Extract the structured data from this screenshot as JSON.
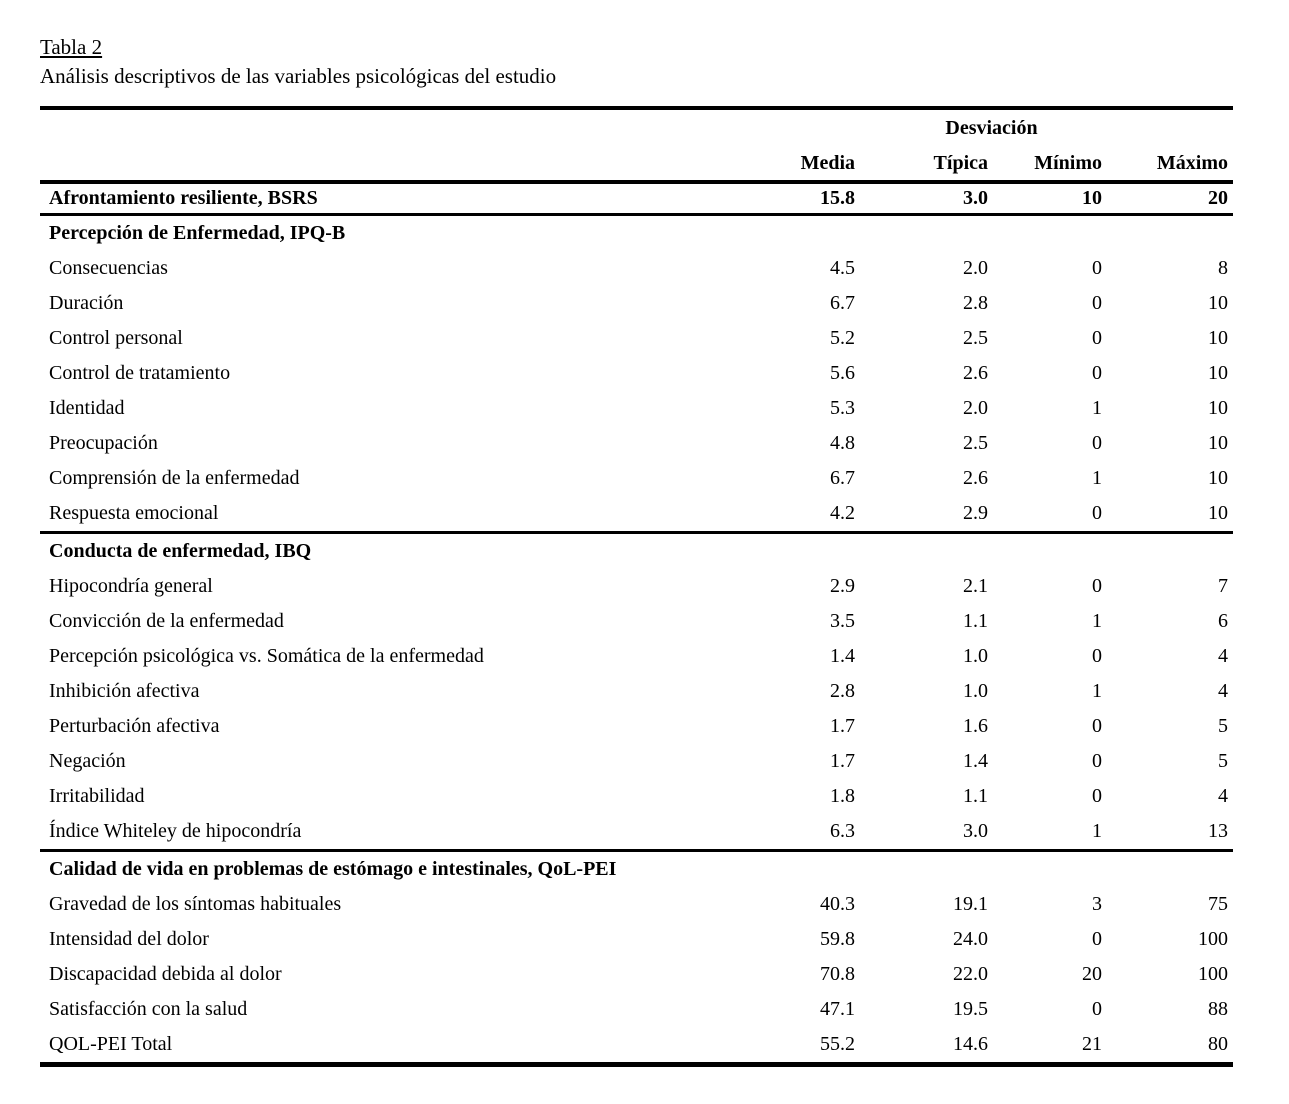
{
  "colors": {
    "background": "#ffffff",
    "text": "#000000",
    "rule": "#000000"
  },
  "document": {
    "table_label": "Tabla 2",
    "table_caption": "Análisis descriptivos de las variables psicológicas del estudio"
  },
  "table": {
    "columns": {
      "group_header": "Desviación",
      "headers": [
        "Media",
        "Típica",
        "Mínimo",
        "Máximo"
      ]
    },
    "rows": [
      {
        "label": "Afrontamiento resiliente, BSRS",
        "style": "bold",
        "rule_below": true,
        "values": [
          "15.8",
          "3.0",
          "10",
          "20"
        ]
      },
      {
        "label": "Percepción de Enfermedad, IPQ-B",
        "style": "section",
        "values": [
          "",
          "",
          "",
          ""
        ]
      },
      {
        "label": "Consecuencias",
        "style": "normal",
        "values": [
          "4.5",
          "2.0",
          "0",
          "8"
        ]
      },
      {
        "label": "Duración",
        "style": "normal",
        "values": [
          "6.7",
          "2.8",
          "0",
          "10"
        ]
      },
      {
        "label": "Control personal",
        "style": "normal",
        "values": [
          "5.2",
          "2.5",
          "0",
          "10"
        ]
      },
      {
        "label": "Control de tratamiento",
        "style": "normal",
        "values": [
          "5.6",
          "2.6",
          "0",
          "10"
        ]
      },
      {
        "label": "Identidad",
        "style": "normal",
        "values": [
          "5.3",
          "2.0",
          "1",
          "10"
        ]
      },
      {
        "label": "Preocupación",
        "style": "normal",
        "values": [
          "4.8",
          "2.5",
          "0",
          "10"
        ]
      },
      {
        "label": "Comprensión de la enfermedad",
        "style": "normal",
        "values": [
          "6.7",
          "2.6",
          "1",
          "10"
        ]
      },
      {
        "label": "Respuesta emocional",
        "style": "normal",
        "rule_below": true,
        "values": [
          "4.2",
          "2.9",
          "0",
          "10"
        ]
      },
      {
        "label": "Conducta de enfermedad, IBQ",
        "style": "section",
        "values": [
          "",
          "",
          "",
          ""
        ]
      },
      {
        "label": "Hipocondría general",
        "style": "normal",
        "values": [
          "2.9",
          "2.1",
          "0",
          "7"
        ]
      },
      {
        "label": "Convicción de la enfermedad",
        "style": "normal",
        "values": [
          "3.5",
          "1.1",
          "1",
          "6"
        ]
      },
      {
        "label": "Percepción psicológica vs. Somática de la enfermedad",
        "style": "normal",
        "values": [
          "1.4",
          "1.0",
          "0",
          "4"
        ]
      },
      {
        "label": "Inhibición afectiva",
        "style": "normal",
        "values": [
          "2.8",
          "1.0",
          "1",
          "4"
        ]
      },
      {
        "label": "Perturbación afectiva",
        "style": "normal",
        "values": [
          "1.7",
          "1.6",
          "0",
          "5"
        ]
      },
      {
        "label": "Negación",
        "style": "normal",
        "values": [
          "1.7",
          "1.4",
          "0",
          "5"
        ]
      },
      {
        "label": "Irritabilidad",
        "style": "normal",
        "values": [
          "1.8",
          "1.1",
          "0",
          "4"
        ]
      },
      {
        "label": "Índice Whiteley de hipocondría",
        "style": "normal",
        "rule_below": true,
        "values": [
          "6.3",
          "3.0",
          "1",
          "13"
        ]
      },
      {
        "label": "Calidad de vida en problemas de estómago e intestinales, QoL-PEI",
        "style": "section",
        "values": [
          "",
          "",
          "",
          ""
        ]
      },
      {
        "label": "Gravedad de los síntomas habituales",
        "style": "normal",
        "values": [
          "40.3",
          "19.1",
          "3",
          "75"
        ]
      },
      {
        "label": "Intensidad del dolor",
        "style": "normal",
        "values": [
          "59.8",
          "24.0",
          "0",
          "100"
        ]
      },
      {
        "label": "Discapacidad debida al dolor",
        "style": "normal",
        "values": [
          "70.8",
          "22.0",
          "20",
          "100"
        ]
      },
      {
        "label": "Satisfacción con la salud",
        "style": "normal",
        "values": [
          "47.1",
          "19.5",
          "0",
          "88"
        ]
      },
      {
        "label": "QOL-PEI Total",
        "style": "normal",
        "values": [
          "55.2",
          "14.6",
          "21",
          "80"
        ]
      }
    ]
  }
}
